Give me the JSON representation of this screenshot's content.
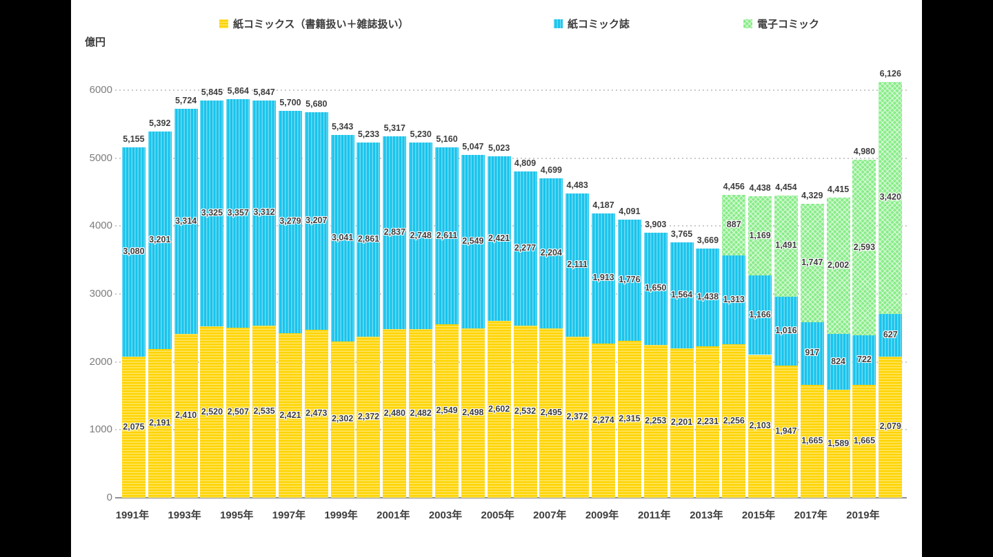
{
  "page": {
    "background": "#000000",
    "panel_background": "#ffffff"
  },
  "legend": {
    "items": [
      {
        "label": "紙コミックス（書籍扱い＋雑誌扱い）",
        "color": "#ffd400",
        "pattern": "horizontal-stripes"
      },
      {
        "label": "紙コミック誌",
        "color": "#18c4ec",
        "pattern": "vertical-stripes"
      },
      {
        "label": "電子コミック",
        "color": "#87ec87",
        "pattern": "crosshatch"
      }
    ]
  },
  "chart_data": {
    "type": "bar",
    "stacked": true,
    "ylabel": "億円",
    "ylim": [
      0,
      6000
    ],
    "y_ticks": [
      0,
      1000,
      2000,
      3000,
      4000,
      5000,
      6000
    ],
    "grid": "horizontal-dotted",
    "legend_position": "top",
    "years": [
      1991,
      1992,
      1993,
      1994,
      1995,
      1996,
      1997,
      1998,
      1999,
      2000,
      2001,
      2002,
      2003,
      2004,
      2005,
      2006,
      2007,
      2008,
      2009,
      2010,
      2011,
      2012,
      2013,
      2014,
      2015,
      2016,
      2017,
      2018,
      2019,
      2020
    ],
    "x_tick_labels": [
      "1991年",
      "1993年",
      "1995年",
      "1997年",
      "1999年",
      "2001年",
      "2003年",
      "2005年",
      "2007年",
      "2009年",
      "2011年",
      "2013年",
      "2015年",
      "2017年",
      "2019年"
    ],
    "series": [
      {
        "name": "紙コミックス（書籍扱い＋雑誌扱い）",
        "color": "#ffd400",
        "values": [
          2075,
          2191,
          2410,
          2520,
          2507,
          2535,
          2421,
          2473,
          2302,
          2372,
          2480,
          2482,
          2549,
          2498,
          2602,
          2532,
          2495,
          2372,
          2274,
          2315,
          2253,
          2201,
          2231,
          2256,
          2103,
          1947,
          1665,
          1589,
          1665,
          2079
        ]
      },
      {
        "name": "紙コミック誌",
        "color": "#18c4ec",
        "values": [
          3080,
          3201,
          3314,
          3325,
          3357,
          3312,
          3279,
          3207,
          3041,
          2861,
          2837,
          2748,
          2611,
          2549,
          2421,
          2277,
          2204,
          2111,
          1913,
          1776,
          1650,
          1564,
          1438,
          1313,
          1166,
          1016,
          917,
          824,
          722,
          627
        ]
      },
      {
        "name": "電子コミック",
        "color": "#87ec87",
        "values": [
          0,
          0,
          0,
          0,
          0,
          0,
          0,
          0,
          0,
          0,
          0,
          0,
          0,
          0,
          0,
          0,
          0,
          0,
          0,
          0,
          0,
          0,
          0,
          887,
          1169,
          1491,
          1747,
          2002,
          2593,
          3420
        ]
      }
    ],
    "totals": [
      5155,
      5392,
      5724,
      5845,
      5864,
      5847,
      5700,
      5680,
      5343,
      5233,
      5317,
      5230,
      5160,
      5047,
      5023,
      4809,
      4699,
      4483,
      4187,
      4091,
      3903,
      3765,
      3669,
      4456,
      4438,
      4454,
      4329,
      4415,
      4980,
      6126
    ]
  }
}
